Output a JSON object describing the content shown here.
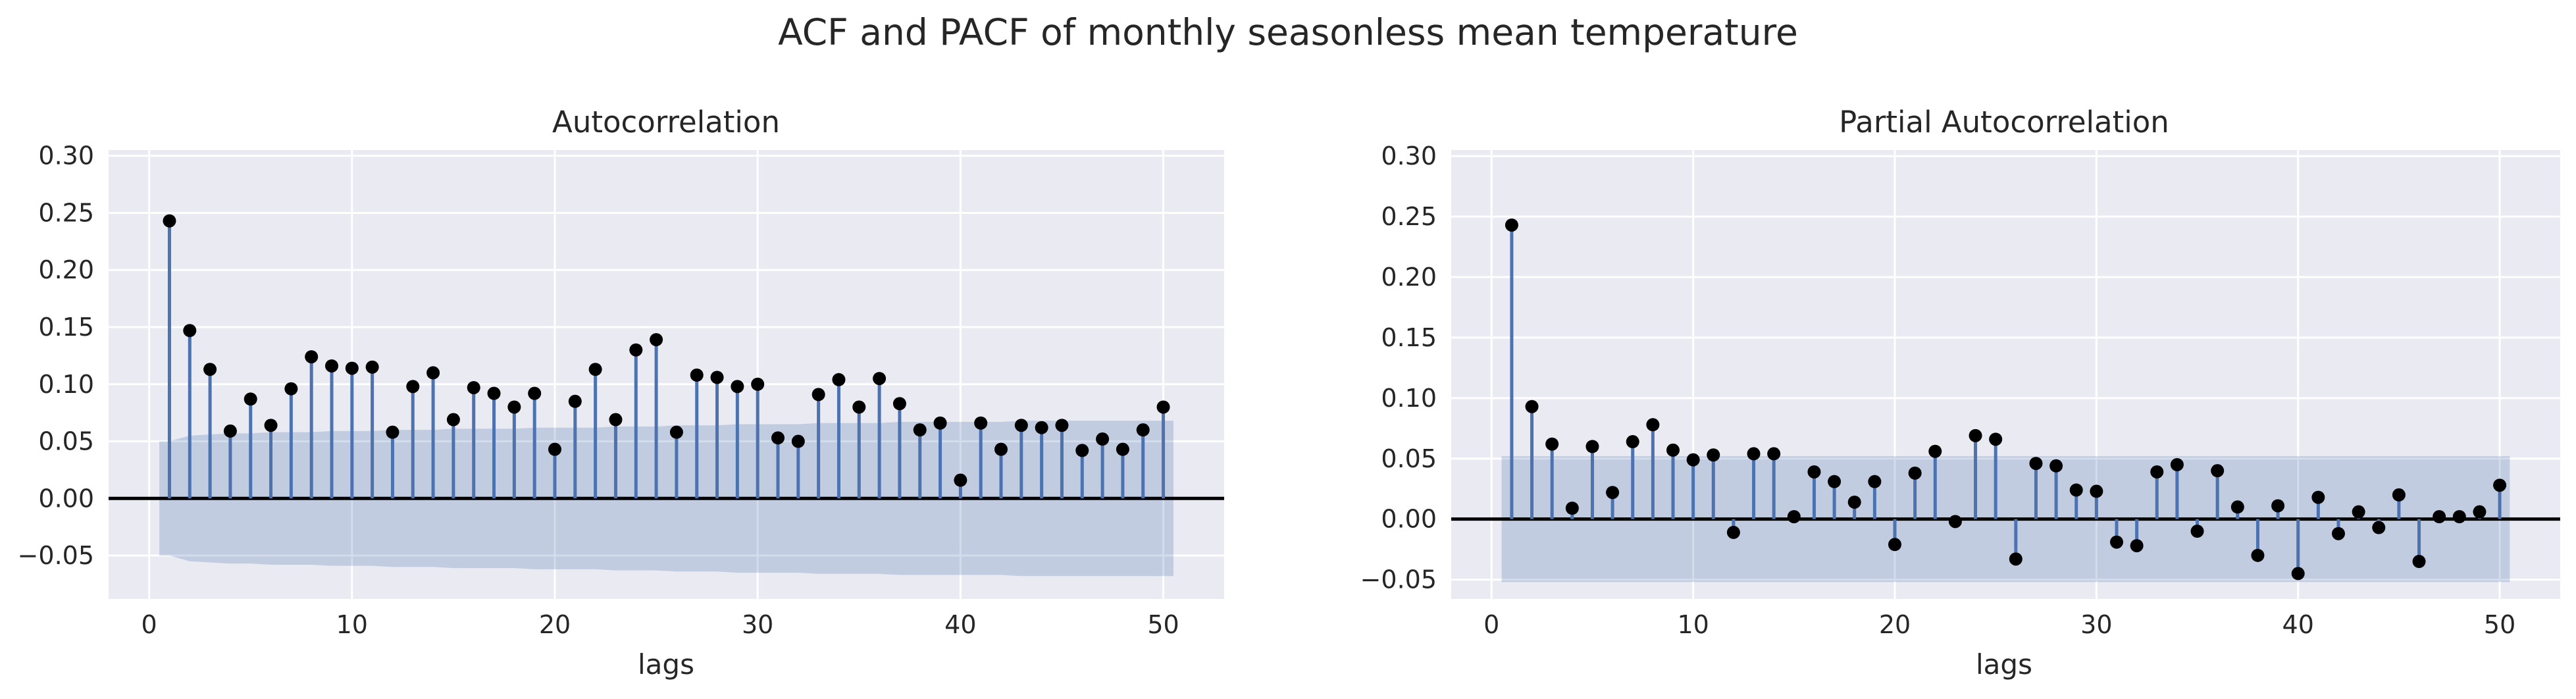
{
  "figure": {
    "suptitle": "ACF and PACF of monthly seasonless mean temperature"
  },
  "colors": {
    "axes_bg": "#eaeaf2",
    "grid": "#ffffff",
    "stem": "#4c72b0",
    "marker": "#000000",
    "confint": "#4c72b0",
    "zero_line": "#000000"
  },
  "chart_data": [
    {
      "type": "stem",
      "title": "Autocorrelation",
      "xlabel": "lags",
      "ylabel": "",
      "xlim": [
        -2,
        53
      ],
      "ylim": [
        -0.088,
        0.305
      ],
      "xticks": [
        "0",
        "10",
        "20",
        "30",
        "40",
        "50"
      ],
      "yticks": [
        "−0.05",
        "0.00",
        "0.05",
        "0.10",
        "0.15",
        "0.20",
        "0.25",
        "0.30"
      ],
      "grid": true,
      "lags": [
        1,
        2,
        3,
        4,
        5,
        6,
        7,
        8,
        9,
        10,
        11,
        12,
        13,
        14,
        15,
        16,
        17,
        18,
        19,
        20,
        21,
        22,
        23,
        24,
        25,
        26,
        27,
        28,
        29,
        30,
        31,
        32,
        33,
        34,
        35,
        36,
        37,
        38,
        39,
        40,
        41,
        42,
        43,
        44,
        45,
        46,
        47,
        48,
        49,
        50
      ],
      "values": [
        0.243,
        0.147,
        0.113,
        0.059,
        0.087,
        0.064,
        0.096,
        0.124,
        0.116,
        0.114,
        0.115,
        0.058,
        0.098,
        0.11,
        0.069,
        0.097,
        0.092,
        0.08,
        0.092,
        0.043,
        0.085,
        0.113,
        0.069,
        0.13,
        0.139,
        0.058,
        0.108,
        0.106,
        0.098,
        0.1,
        0.053,
        0.05,
        0.091,
        0.104,
        0.08,
        0.105,
        0.083,
        0.06,
        0.066,
        0.016,
        0.066,
        0.043,
        0.064,
        0.062,
        0.064,
        0.042,
        0.052,
        0.043,
        0.06,
        0.08
      ],
      "confint_upper": [
        0.05,
        0.055,
        0.056,
        0.057,
        0.057,
        0.058,
        0.058,
        0.058,
        0.059,
        0.059,
        0.059,
        0.06,
        0.06,
        0.06,
        0.061,
        0.061,
        0.061,
        0.061,
        0.062,
        0.062,
        0.062,
        0.062,
        0.063,
        0.063,
        0.063,
        0.064,
        0.064,
        0.064,
        0.065,
        0.065,
        0.065,
        0.065,
        0.066,
        0.066,
        0.066,
        0.066,
        0.067,
        0.067,
        0.067,
        0.067,
        0.067,
        0.067,
        0.068,
        0.068,
        0.068,
        0.068,
        0.068,
        0.068,
        0.068,
        0.068
      ]
    },
    {
      "type": "stem",
      "title": "Partial Autocorrelation",
      "xlabel": "lags",
      "ylabel": "",
      "xlim": [
        -2,
        53
      ],
      "ylim": [
        -0.066,
        0.305
      ],
      "xticks": [
        "0",
        "10",
        "20",
        "30",
        "40",
        "50"
      ],
      "yticks": [
        "−0.05",
        "0.00",
        "0.05",
        "0.10",
        "0.15",
        "0.20",
        "0.25",
        "0.30"
      ],
      "grid": true,
      "lags": [
        1,
        2,
        3,
        4,
        5,
        6,
        7,
        8,
        9,
        10,
        11,
        12,
        13,
        14,
        15,
        16,
        17,
        18,
        19,
        20,
        21,
        22,
        23,
        24,
        25,
        26,
        27,
        28,
        29,
        30,
        31,
        32,
        33,
        34,
        35,
        36,
        37,
        38,
        39,
        40,
        41,
        42,
        43,
        44,
        45,
        46,
        47,
        48,
        49,
        50
      ],
      "values": [
        0.243,
        0.093,
        0.062,
        0.009,
        0.06,
        0.022,
        0.064,
        0.078,
        0.057,
        0.049,
        0.053,
        -0.011,
        0.054,
        0.054,
        0.002,
        0.039,
        0.031,
        0.014,
        0.031,
        -0.021,
        0.038,
        0.056,
        -0.002,
        0.069,
        0.066,
        -0.033,
        0.046,
        0.044,
        0.024,
        0.023,
        -0.019,
        -0.022,
        0.039,
        0.045,
        -0.01,
        0.04,
        0.01,
        -0.03,
        0.011,
        -0.045,
        0.018,
        -0.012,
        0.006,
        -0.007,
        0.02,
        -0.035,
        0.002,
        0.002,
        0.006,
        0.028
      ],
      "confint_upper": [
        0.052,
        0.052,
        0.052,
        0.052,
        0.052,
        0.052,
        0.052,
        0.052,
        0.052,
        0.052,
        0.052,
        0.052,
        0.052,
        0.052,
        0.052,
        0.052,
        0.052,
        0.052,
        0.052,
        0.052,
        0.052,
        0.052,
        0.052,
        0.052,
        0.052,
        0.052,
        0.052,
        0.052,
        0.052,
        0.052,
        0.052,
        0.052,
        0.052,
        0.052,
        0.052,
        0.052,
        0.052,
        0.052,
        0.052,
        0.052,
        0.052,
        0.052,
        0.052,
        0.052,
        0.052,
        0.052,
        0.052,
        0.052,
        0.052,
        0.052
      ]
    }
  ]
}
